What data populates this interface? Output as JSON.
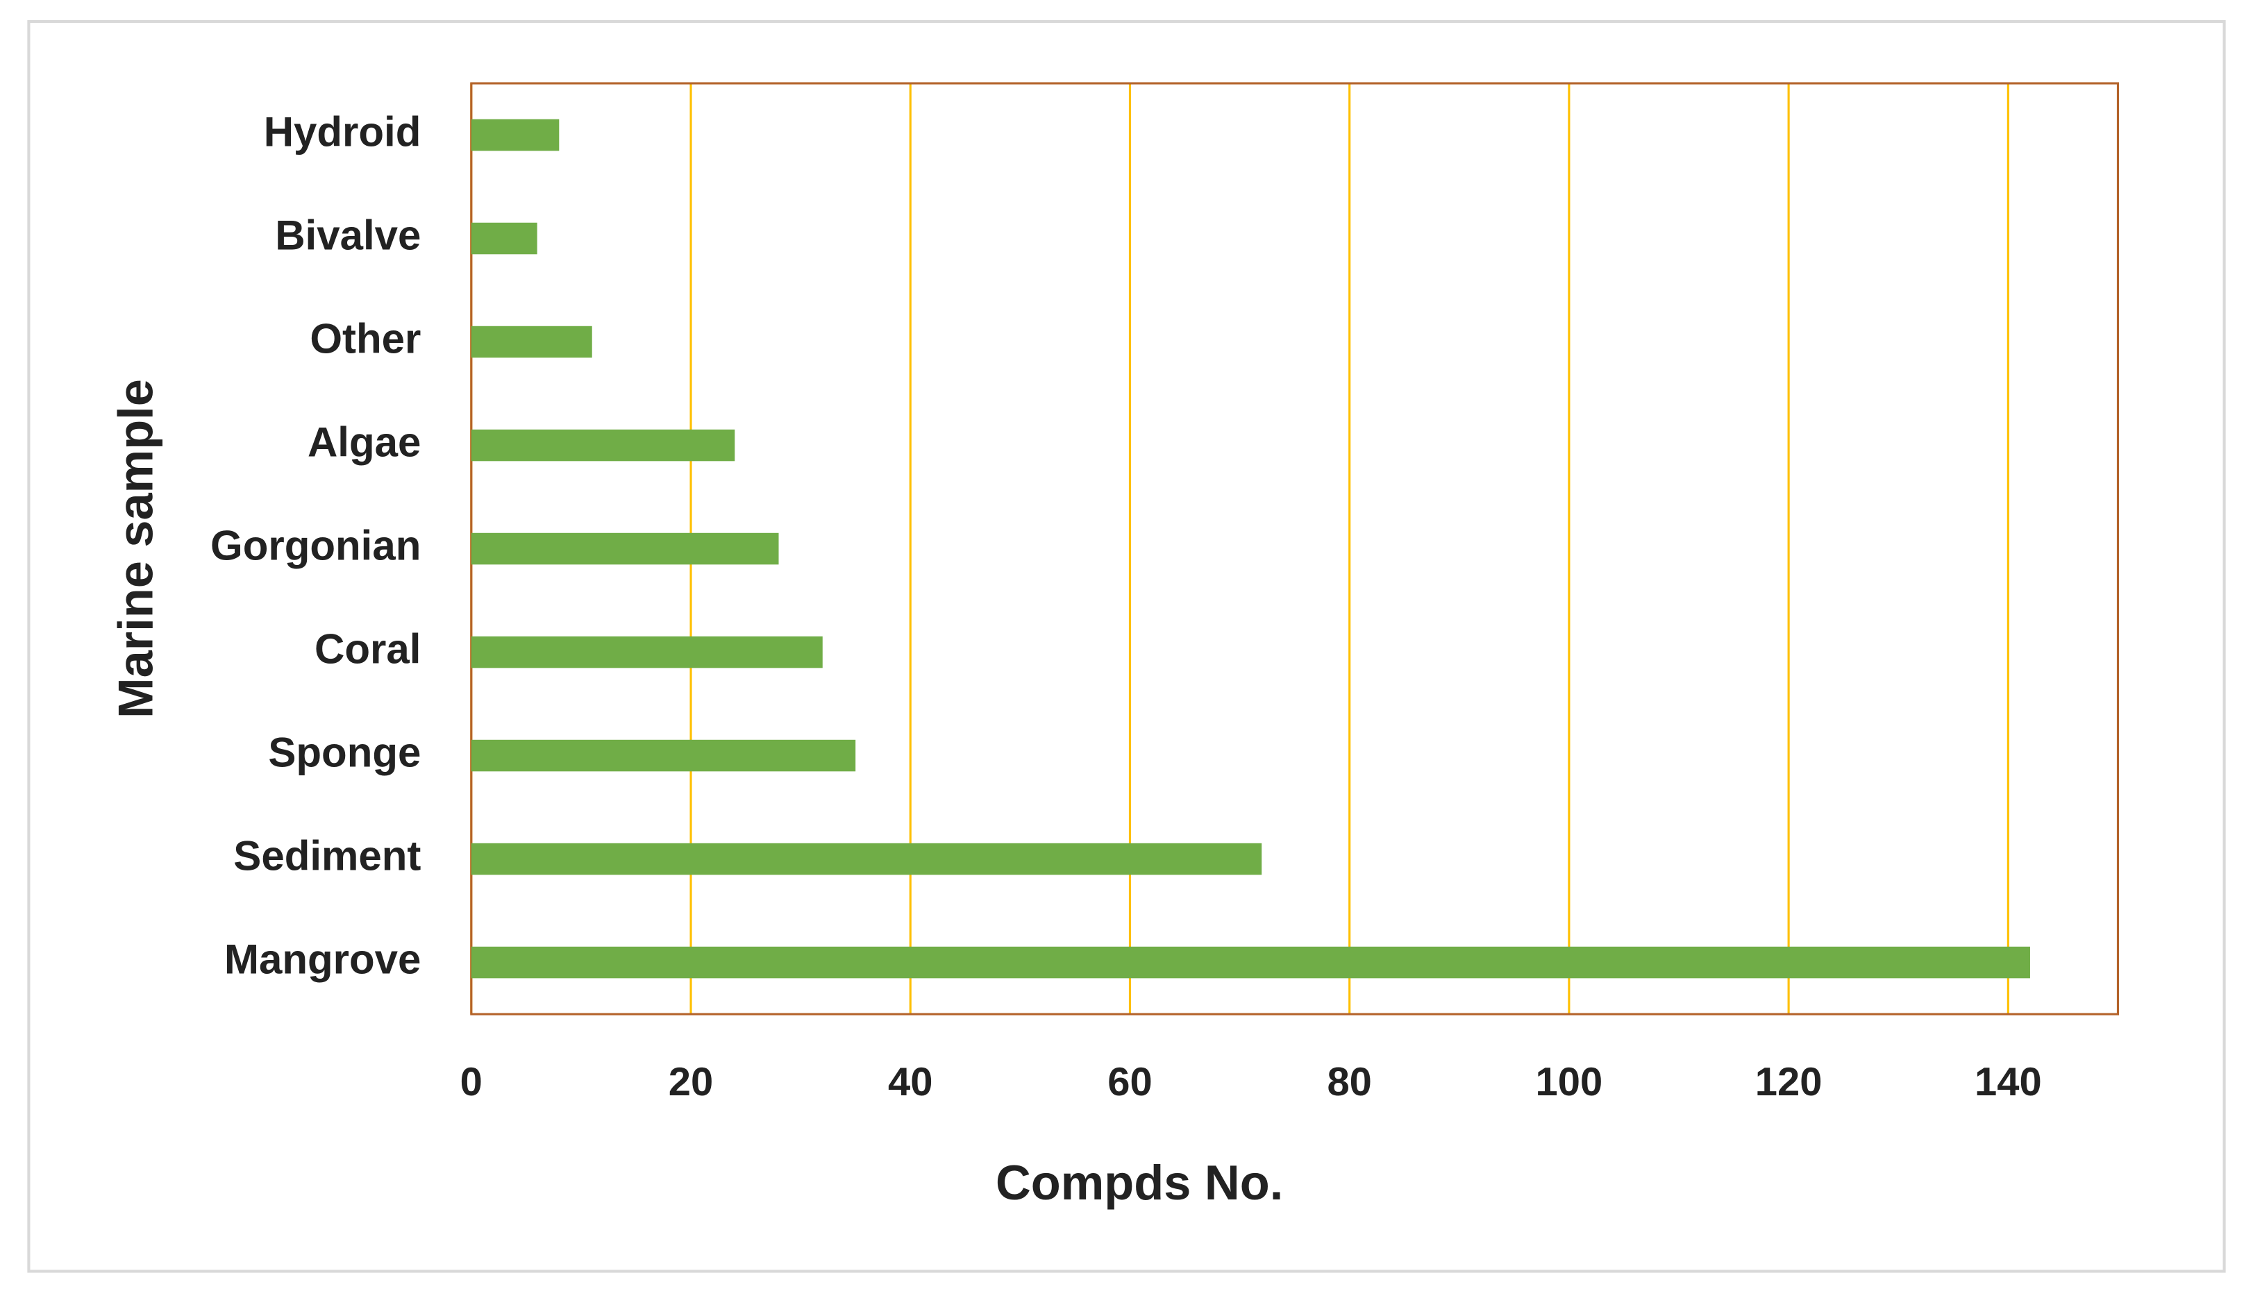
{
  "chart_data": {
    "type": "bar",
    "orientation": "horizontal",
    "x_label": "Compds No.",
    "y_label": "Marine sample",
    "categories": [
      "Hydroid",
      "Bivalve",
      "Other",
      "Algae",
      "Gorgonian",
      "Coral",
      "Sponge",
      "Sediment",
      "Mangrove"
    ],
    "values": [
      8,
      6,
      11,
      24,
      28,
      32,
      35,
      72,
      142
    ],
    "color": "#70ad47",
    "grid_color": "#ffc000",
    "frame_color": "#b4632a",
    "xlim": [
      0,
      150
    ],
    "xticks": [
      0,
      20,
      40,
      60,
      80,
      100,
      120,
      140
    ],
    "grid": true
  }
}
